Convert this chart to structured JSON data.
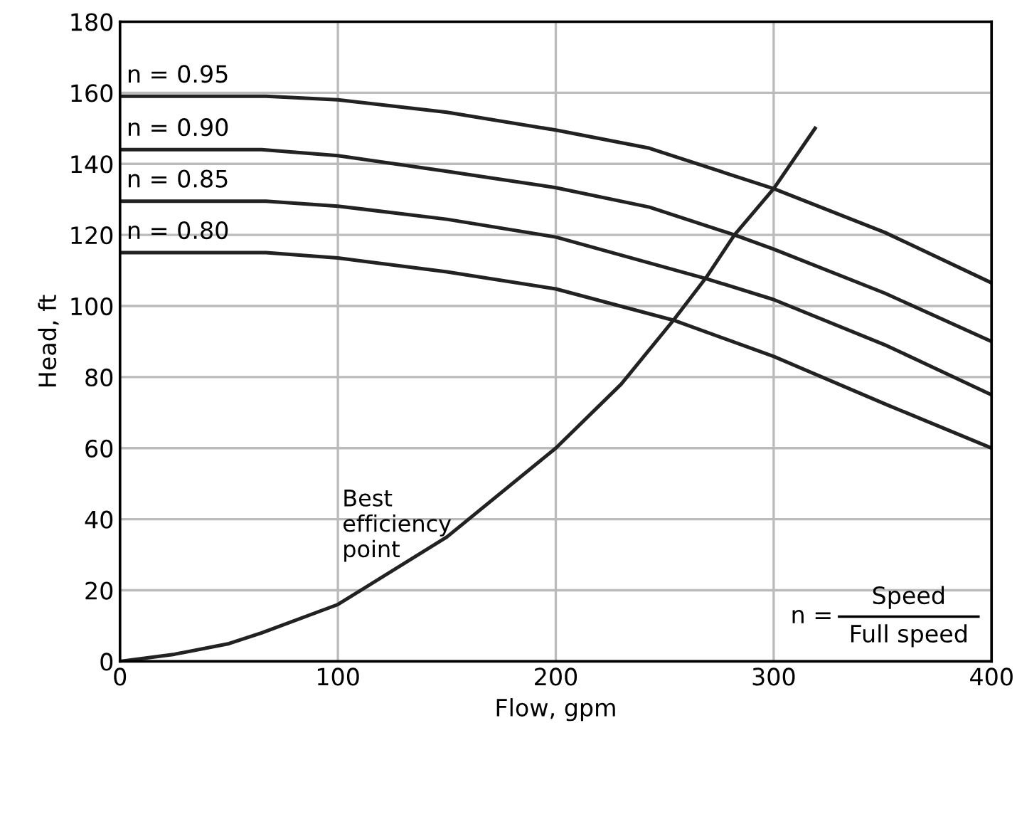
{
  "chart_data": {
    "type": "line",
    "xlabel": "Flow, gpm",
    "ylabel": "Head, ft",
    "xlim": [
      0,
      400
    ],
    "ylim": [
      0,
      180
    ],
    "xticks": [
      0,
      100,
      200,
      300,
      400
    ],
    "yticks": [
      0,
      20,
      40,
      60,
      80,
      100,
      120,
      140,
      160,
      180
    ],
    "grid": true,
    "legend": false,
    "marker": "none",
    "line_style": "solid",
    "series": [
      {
        "name": "n = 0.95",
        "color": "#222222",
        "x": [
          0,
          67,
          100,
          150,
          200,
          243,
          300,
          351,
          400
        ],
        "values": [
          159,
          159,
          158,
          154.5,
          149.5,
          144.4,
          133,
          120.7,
          106.5
        ]
      },
      {
        "name": "n = 0.90",
        "color": "#222222",
        "x": [
          0,
          65,
          100,
          150,
          200,
          243,
          282,
          300,
          351,
          400
        ],
        "values": [
          144,
          144,
          142.3,
          137.9,
          133.3,
          127.8,
          120,
          116,
          103.6,
          90
        ]
      },
      {
        "name": "n = 0.85",
        "color": "#222222",
        "x": [
          0,
          67,
          100,
          150,
          200,
          269,
          300,
          352,
          400
        ],
        "values": [
          129.5,
          129.5,
          128.1,
          124.4,
          119.4,
          107.7,
          101.8,
          88.8,
          75
        ]
      },
      {
        "name": "n = 0.80",
        "color": "#222222",
        "x": [
          0,
          67,
          100,
          150,
          200,
          254,
          300,
          352,
          400
        ],
        "values": [
          115,
          115,
          113.5,
          109.6,
          104.8,
          96,
          85.8,
          72.2,
          60
        ]
      },
      {
        "name": "Best efficiency point",
        "color": "#222222",
        "x": [
          0,
          25,
          50,
          65,
          100,
          150,
          200,
          230,
          254,
          269,
          282,
          300,
          319
        ],
        "values": [
          0,
          2,
          5,
          8,
          16,
          35,
          60,
          78,
          96,
          108,
          120,
          133,
          150
        ]
      }
    ],
    "annotations": [
      "n =",
      "Speed",
      "Full speed"
    ]
  }
}
